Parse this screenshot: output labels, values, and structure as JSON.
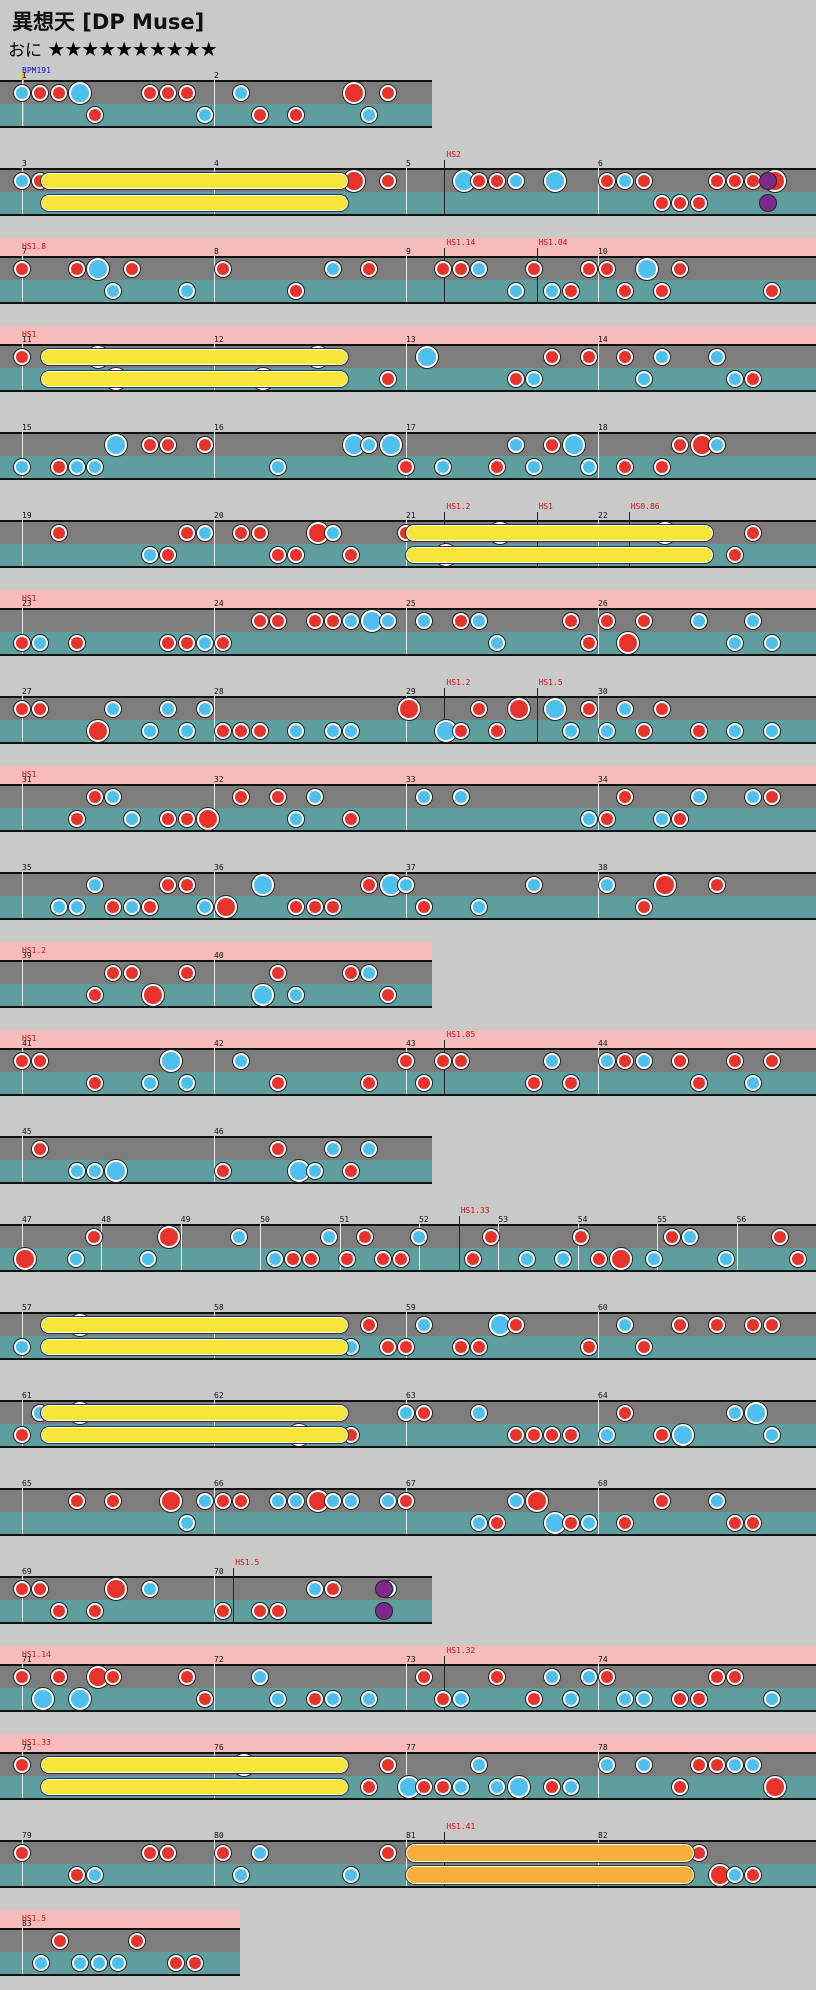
{
  "header": {
    "title": "異想天 [DP Muse]",
    "difficulty_label": "おに",
    "stars": "★★★★★★★★★★"
  },
  "colors": {
    "don": "#e8332d",
    "ka": "#4ec0ee",
    "roll": "#f7e63a",
    "roll_big": "#f6b03a",
    "balloon": "#7d2a8a"
  },
  "rows": [
    {
      "bars": [
        "1",
        "2"
      ],
      "half": true,
      "bpm": "BPM191",
      "hs": ""
    },
    {
      "bars": [
        "3",
        "4",
        "5",
        "6"
      ],
      "hs": "",
      "hs_marks": [
        "HS2"
      ]
    },
    {
      "bars": [
        "7",
        "8",
        "9",
        "10"
      ],
      "hs": "HS1.8",
      "hs_marks": [
        "HS1.14",
        "HS1.04"
      ]
    },
    {
      "bars": [
        "11",
        "12",
        "13",
        "14"
      ],
      "hs": "HS1",
      "hs_marks": []
    },
    {
      "bars": [
        "15",
        "16",
        "17",
        "18"
      ],
      "hs": "",
      "hs_marks": []
    },
    {
      "bars": [
        "19",
        "20",
        "21",
        "22"
      ],
      "hs": "",
      "hs_marks": [
        "HS1.2",
        "HS1",
        "HS0.86"
      ]
    },
    {
      "bars": [
        "23",
        "24",
        "25",
        "26"
      ],
      "hs": "HS1",
      "hs_marks": []
    },
    {
      "bars": [
        "27",
        "28",
        "29",
        "30"
      ],
      "hs": "",
      "hs_marks": [
        "HS1.2",
        "HS1.5"
      ]
    },
    {
      "bars": [
        "31",
        "32",
        "33",
        "34"
      ],
      "hs": "HS1",
      "hs_marks": []
    },
    {
      "bars": [
        "35",
        "36",
        "37",
        "38"
      ],
      "hs": "",
      "hs_marks": []
    },
    {
      "bars": [
        "39",
        "40"
      ],
      "half": true,
      "hs": "HS1.2",
      "hs_marks": []
    },
    {
      "bars": [
        "41",
        "42",
        "43",
        "44"
      ],
      "hs": "HS1",
      "hs_marks": [
        "HS1.85"
      ]
    },
    {
      "bars": [
        "45",
        "46"
      ],
      "half": true,
      "hs": "",
      "hs_marks": []
    },
    {
      "bars": [
        "47",
        "48",
        "49",
        "50",
        "51",
        "52",
        "53",
        "54",
        "55",
        "56"
      ],
      "hs": "",
      "hs_marks": [
        "HS1.33"
      ]
    },
    {
      "bars": [
        "57",
        "58",
        "59",
        "60"
      ],
      "hs": "",
      "hs_marks": []
    },
    {
      "bars": [
        "61",
        "62",
        "63",
        "64"
      ],
      "hs": "",
      "hs_marks": []
    },
    {
      "bars": [
        "65",
        "66",
        "67",
        "68"
      ],
      "hs": "",
      "hs_marks": []
    },
    {
      "bars": [
        "69",
        "70"
      ],
      "half": true,
      "hs": "",
      "hs_marks": [
        "HS1.5"
      ]
    },
    {
      "bars": [
        "71",
        "72",
        "73",
        "74"
      ],
      "hs": "HS1.14",
      "hs_marks": [
        "HS1.32"
      ]
    },
    {
      "bars": [
        "75",
        "76",
        "77",
        "78"
      ],
      "hs": "HS1.33",
      "hs_marks": []
    },
    {
      "bars": [
        "79",
        "80",
        "81",
        "82"
      ],
      "hs": "",
      "hs_marks": [
        "HS1.41"
      ]
    },
    {
      "bars": [
        "83"
      ],
      "quarter": true,
      "hs": "HS1.5",
      "hs_marks": []
    }
  ]
}
